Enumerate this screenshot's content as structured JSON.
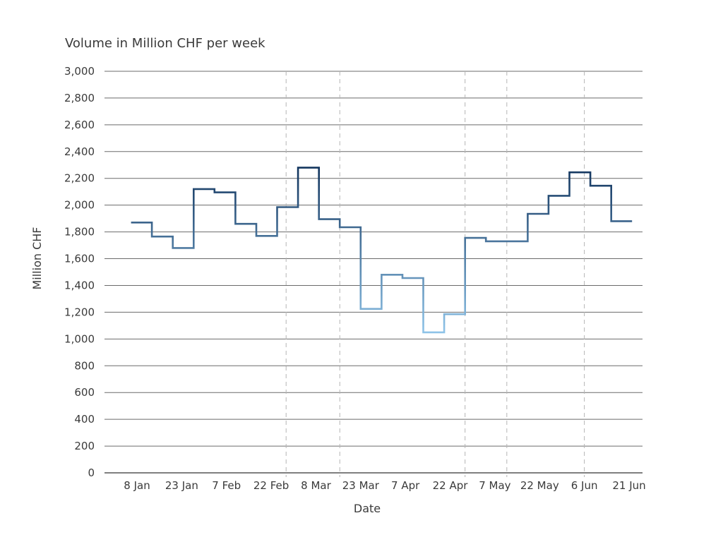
{
  "chart_data": {
    "type": "line",
    "step": true,
    "title": "Volume in Million CHF per week",
    "xlabel": "Date",
    "ylabel": "Million CHF",
    "ylim": [
      0,
      3000
    ],
    "y_ticks": [
      "0",
      "200",
      "400",
      "600",
      "800",
      "1,000",
      "1,200",
      "1,400",
      "1,600",
      "1,800",
      "2,000",
      "2,200",
      "2,400",
      "2,600",
      "2,800",
      "3,000"
    ],
    "x_ticks": [
      "8 Jan",
      "23 Jan",
      "7 Feb",
      "22 Feb",
      "8 Mar",
      "23 Mar",
      "7 Apr",
      "22 Apr",
      "7 May",
      "22 May",
      "6 Jun",
      "21 Jun"
    ],
    "grid": "horizontal",
    "color_scale": {
      "low": "#8ec3e8",
      "high": "#12355e",
      "min_value": 1050,
      "max_value": 2280
    },
    "series": [
      {
        "x": [
          "6 Jan",
          "13 Jan",
          "20 Jan",
          "27 Jan",
          "3 Feb",
          "10 Feb",
          "17 Feb",
          "24 Feb",
          "2 Mar",
          "9 Mar",
          "16 Mar",
          "23 Mar",
          "30 Mar",
          "6 Apr",
          "13 Apr",
          "20 Apr",
          "27 Apr",
          "4 May",
          "11 May",
          "18 May",
          "25 May",
          "1 Jun",
          "8 Jun",
          "15 Jun"
        ],
        "values": [
          1870,
          1765,
          1680,
          2120,
          2095,
          1860,
          1770,
          1985,
          2280,
          1895,
          1835,
          1225,
          1480,
          1455,
          1050,
          1185,
          1755,
          1730,
          1730,
          1935,
          2070,
          2245,
          2145,
          1880
        ]
      }
    ],
    "reference_lines": [
      "27 Feb",
      "16 Mar",
      "27 Apr",
      "11 May",
      "6 Jun"
    ]
  }
}
